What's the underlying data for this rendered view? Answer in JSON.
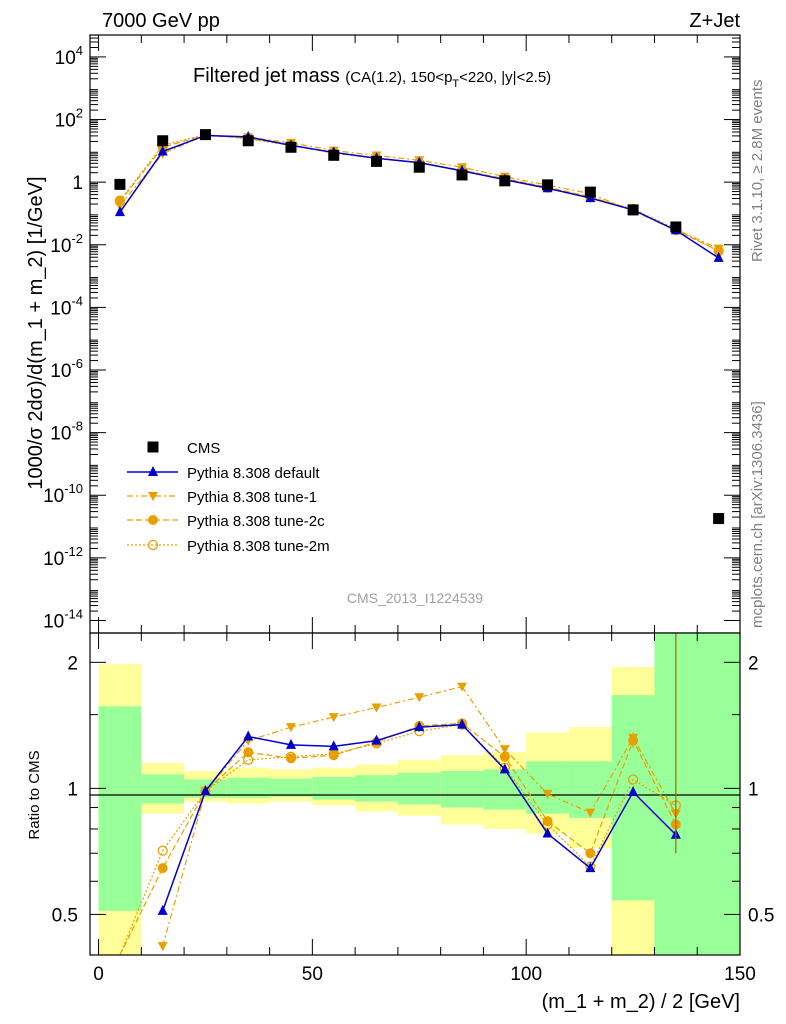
{
  "header": {
    "left": "7000 GeV pp",
    "right": "Z+Jet"
  },
  "title_main": "Filtered jet mass",
  "title_sub_a": "(CA(1.2), 150<p",
  "title_sub_t": "T",
  "title_sub_b": "<220, |y|<2.5)",
  "ylabel_main": "1000/σ 2dσ)/d(m_1 + m_2) [1/GeV]",
  "ylabel_ratio": "Ratio to CMS",
  "xlabel": "(m_1 + m_2) / 2 [GeV]",
  "watermark": "CMS_2013_I1224539",
  "side_text_top": "Rivet 3.1.10, ≥ 2.8M events",
  "side_text_bottom": "mcplots.cern.ch [arXiv:1306.3436]",
  "legend": [
    "CMS",
    "Pythia 8.308 default",
    "Pythia 8.308 tune-1",
    "Pythia 8.308 tune-2c",
    "Pythia 8.308 tune-2m"
  ],
  "colors": {
    "cms": "#000000",
    "default": "#0000cc",
    "tunes": "#e8a000",
    "band_green": "#99ff99",
    "band_yellow": "#ffff99"
  },
  "chart_data": {
    "type": "line",
    "x_ticks": [
      0,
      50,
      100,
      150
    ],
    "xlim": [
      -2,
      150
    ],
    "main": {
      "yscale": "log",
      "ylim_exp": [
        -14.4,
        4.7
      ],
      "y_tick_exps": [
        -14,
        -12,
        -10,
        -8,
        -6,
        -4,
        -2,
        0,
        2,
        4
      ],
      "y_tick_labels": [
        "10-14",
        "10-12",
        "10-10",
        "10-8",
        "10-6",
        "10-4",
        "10-2",
        "1",
        "102",
        "104"
      ],
      "series": [
        {
          "name": "CMS",
          "marker": "square",
          "x": [
            5,
            15,
            25,
            35,
            45,
            55,
            65,
            75,
            85,
            95,
            105,
            115,
            125,
            135,
            145
          ],
          "y": [
            0.85,
            21,
            33,
            21,
            13,
            7.2,
            4.6,
            3.0,
            1.7,
            1.1,
            0.82,
            0.48,
            0.13,
            0.037,
            1.8e-11
          ]
        },
        {
          "name": "Pythia 8.308 default",
          "marker": "triangle-up",
          "x": [
            5,
            15,
            25,
            35,
            45,
            55,
            65,
            75,
            85,
            95,
            105,
            115,
            125,
            135,
            145
          ],
          "y": [
            0.11,
            9.5,
            31,
            28,
            15,
            8.9,
            5.8,
            4.2,
            2.3,
            1.2,
            0.64,
            0.31,
            0.13,
            0.029,
            0.0038
          ]
        },
        {
          "name": "Pythia 8.308 tune-1",
          "marker": "triangle-down",
          "x": [
            5,
            15,
            25,
            35,
            45,
            55,
            65,
            75,
            85,
            95,
            105,
            115,
            125,
            135,
            145
          ],
          "y": [
            0.18,
            8.0,
            32,
            27,
            18,
            10.2,
            7.1,
            5.0,
            3.0,
            1.5,
            0.8,
            0.43,
            0.12,
            0.031,
            0.0075
          ]
        },
        {
          "name": "Pythia 8.308 tune-2c",
          "marker": "circle-filled",
          "x": [
            5,
            15,
            25,
            35,
            45,
            55,
            65,
            75,
            85,
            95,
            105,
            115,
            125,
            135,
            145
          ],
          "y": [
            0.24,
            13,
            32,
            25,
            15,
            8.5,
            5.8,
            4.2,
            2.4,
            1.3,
            0.69,
            0.34,
            0.13,
            0.029,
            0.0065
          ]
        },
        {
          "name": "Pythia 8.308 tune-2m",
          "marker": "circle-open",
          "x": [
            5,
            15,
            25,
            35,
            45,
            55,
            65,
            75,
            85,
            95,
            105,
            115,
            125,
            135,
            145
          ],
          "y": [
            0.26,
            15,
            33,
            24,
            15,
            8.5,
            5.8,
            4.1,
            2.4,
            1.25,
            0.67,
            0.33,
            0.14,
            0.032,
            0.0062
          ]
        }
      ]
    },
    "ratio": {
      "yscale": "log",
      "ylim": [
        0.4,
        2.35
      ],
      "y_ticks": [
        0.5,
        1,
        2
      ],
      "y_tick_labels": [
        "0.5",
        "1",
        "2"
      ],
      "bands": [
        {
          "x": [
            0,
            10
          ],
          "green": [
            0.51,
            1.57
          ],
          "yellow": [
            0.4,
            1.98
          ]
        },
        {
          "x": [
            10,
            20
          ],
          "green": [
            0.92,
            1.08
          ],
          "yellow": [
            0.87,
            1.15
          ]
        },
        {
          "x": [
            20,
            30
          ],
          "green": [
            0.95,
            1.05
          ],
          "yellow": [
            0.93,
            1.1
          ]
        },
        {
          "x": [
            30,
            40
          ],
          "green": [
            0.95,
            1.06
          ],
          "yellow": [
            0.92,
            1.12
          ]
        },
        {
          "x": [
            40,
            50
          ],
          "green": [
            0.955,
            1.055
          ],
          "yellow": [
            0.93,
            1.11
          ]
        },
        {
          "x": [
            50,
            60
          ],
          "green": [
            0.94,
            1.065
          ],
          "yellow": [
            0.91,
            1.12
          ]
        },
        {
          "x": [
            60,
            70
          ],
          "green": [
            0.93,
            1.075
          ],
          "yellow": [
            0.88,
            1.14
          ]
        },
        {
          "x": [
            70,
            80
          ],
          "green": [
            0.915,
            1.09
          ],
          "yellow": [
            0.86,
            1.17
          ]
        },
        {
          "x": [
            80,
            90
          ],
          "green": [
            0.9,
            1.1
          ],
          "yellow": [
            0.82,
            1.2
          ]
        },
        {
          "x": [
            90,
            100
          ],
          "green": [
            0.89,
            1.11
          ],
          "yellow": [
            0.8,
            1.22
          ]
        },
        {
          "x": [
            100,
            110
          ],
          "green": [
            0.87,
            1.16
          ],
          "yellow": [
            0.78,
            1.36
          ]
        },
        {
          "x": [
            110,
            120
          ],
          "green": [
            0.85,
            1.16
          ],
          "yellow": [
            0.72,
            1.4
          ]
        },
        {
          "x": [
            120,
            130
          ],
          "green": [
            0.54,
            1.67
          ],
          "yellow": [
            0.4,
            1.95
          ]
        },
        {
          "x": [
            130,
            150
          ],
          "green": [
            0.4,
            2.35
          ],
          "yellow": [
            0.4,
            2.35
          ]
        }
      ],
      "series": [
        {
          "name": "Pythia 8.308 default",
          "x": [
            15,
            25,
            35,
            45,
            55,
            65,
            75,
            85,
            95,
            105,
            115,
            125,
            135
          ],
          "y": [
            0.51,
            0.985,
            1.33,
            1.27,
            1.26,
            1.3,
            1.4,
            1.42,
            1.11,
            0.78,
            0.645,
            0.98,
            0.775
          ]
        },
        {
          "name": "Pythia 8.308 tune-1",
          "x": [
            15,
            25,
            35,
            45,
            55,
            65,
            75,
            85,
            95,
            105,
            115,
            125,
            135
          ],
          "y": [
            0.42,
            0.985,
            1.3,
            1.4,
            1.48,
            1.56,
            1.65,
            1.75,
            1.24,
            0.97,
            0.875,
            1.32,
            0.87
          ]
        },
        {
          "name": "Pythia 8.308 tune-2c",
          "x": [
            5,
            15,
            25,
            35,
            45,
            55,
            65,
            75,
            85,
            95,
            105,
            115,
            125,
            135
          ],
          "y": [
            0.28,
            0.645,
            0.985,
            1.22,
            1.18,
            1.2,
            1.29,
            1.41,
            1.43,
            1.19,
            0.835,
            0.7,
            1.3,
            0.82
          ]
        },
        {
          "name": "Pythia 8.308 tune-2m",
          "x": [
            5,
            15,
            25,
            35,
            45,
            55,
            65,
            75,
            85,
            95,
            105,
            115,
            125,
            135
          ],
          "y": [
            0.3,
            0.71,
            0.985,
            1.17,
            1.19,
            1.21,
            1.28,
            1.37,
            1.42,
            1.12,
            0.82,
            0.65,
            1.05,
            0.91
          ]
        }
      ]
    }
  }
}
